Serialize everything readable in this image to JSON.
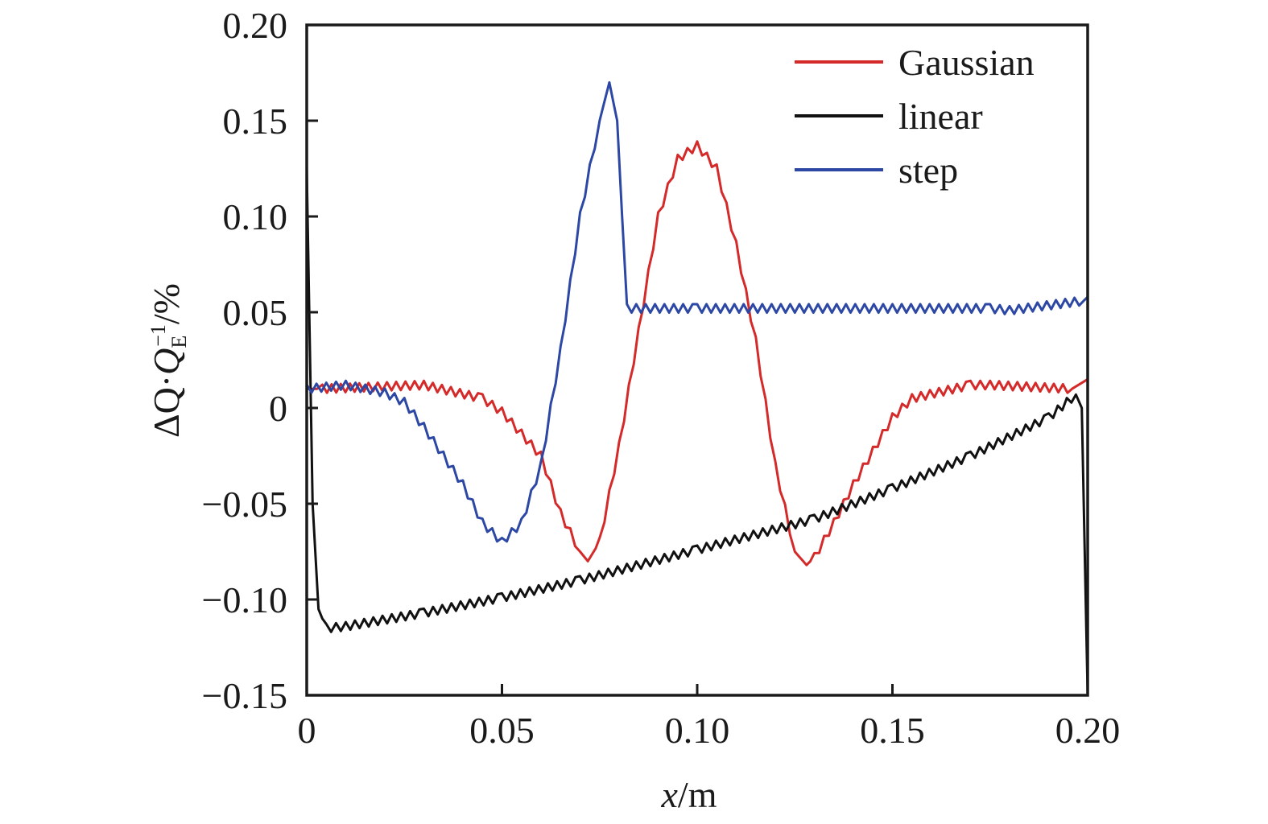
{
  "chart_data": {
    "type": "line",
    "xlabel": {
      "var": "x",
      "unit": "/m"
    },
    "ylabel": {
      "delta": "ΔQ",
      "dot": "·",
      "q": "Q",
      "sub": "E",
      "sup": "−1",
      "unit": "/%"
    },
    "xlim": [
      0,
      0.2
    ],
    "ylim": [
      -0.15,
      0.2
    ],
    "xticks": [
      0,
      0.05,
      0.1,
      0.15,
      0.2
    ],
    "xtick_labels": [
      "0",
      "0.05",
      "0.10",
      "0.15",
      "0.20"
    ],
    "yticks": [
      -0.15,
      -0.1,
      -0.05,
      0,
      0.05,
      0.1,
      0.15,
      0.2
    ],
    "ytick_labels": [
      "−0.15",
      "−0.10",
      "−0.05",
      "0",
      "0.05",
      "0.10",
      "0.15",
      "0.20"
    ],
    "grid": false,
    "legend_position": "top-right",
    "series": [
      {
        "name": "Gaussian",
        "color": "#d42a2a",
        "x": [
          0,
          0.004,
          0.03,
          0.045,
          0.05,
          0.06,
          0.065,
          0.07,
          0.072,
          0.075,
          0.08,
          0.085,
          0.09,
          0.095,
          0.1,
          0.105,
          0.11,
          0.115,
          0.12,
          0.125,
          0.128,
          0.13,
          0.135,
          0.14,
          0.15,
          0.155,
          0.17,
          0.175,
          0.196,
          0.2
        ],
        "y": [
          0.01,
          0.01,
          0.012,
          0.005,
          -0.002,
          -0.025,
          -0.055,
          -0.075,
          -0.08,
          -0.07,
          -0.02,
          0.04,
          0.1,
          0.13,
          0.137,
          0.125,
          0.085,
          0.035,
          -0.03,
          -0.075,
          -0.082,
          -0.078,
          -0.06,
          -0.04,
          -0.005,
          0.005,
          0.012,
          0.012,
          0.01,
          0.015
        ]
      },
      {
        "name": "linear",
        "color": "#111111",
        "x": [
          0,
          0.0015,
          0.003,
          0.005,
          0.01,
          0.03,
          0.05,
          0.07,
          0.1,
          0.13,
          0.15,
          0.17,
          0.19,
          0.197,
          0.1985,
          0.2
        ],
        "y": [
          0.125,
          -0.05,
          -0.105,
          -0.115,
          -0.114,
          -0.107,
          -0.099,
          -0.09,
          -0.074,
          -0.058,
          -0.042,
          -0.025,
          -0.005,
          0.007,
          0.0,
          -0.15
        ]
      },
      {
        "name": "step",
        "color": "#2c47a4",
        "x": [
          0,
          0.01,
          0.02,
          0.025,
          0.03,
          0.035,
          0.04,
          0.045,
          0.05,
          0.055,
          0.06,
          0.065,
          0.07,
          0.075,
          0.0775,
          0.0795,
          0.082,
          0.1,
          0.15,
          0.175,
          0.18,
          0.199,
          0.2
        ],
        "y": [
          0.01,
          0.012,
          0.008,
          0.003,
          -0.01,
          -0.025,
          -0.04,
          -0.06,
          -0.07,
          -0.06,
          -0.03,
          0.03,
          0.1,
          0.15,
          0.17,
          0.15,
          0.052,
          0.052,
          0.052,
          0.052,
          0.051,
          0.056,
          0.058
        ]
      }
    ]
  }
}
